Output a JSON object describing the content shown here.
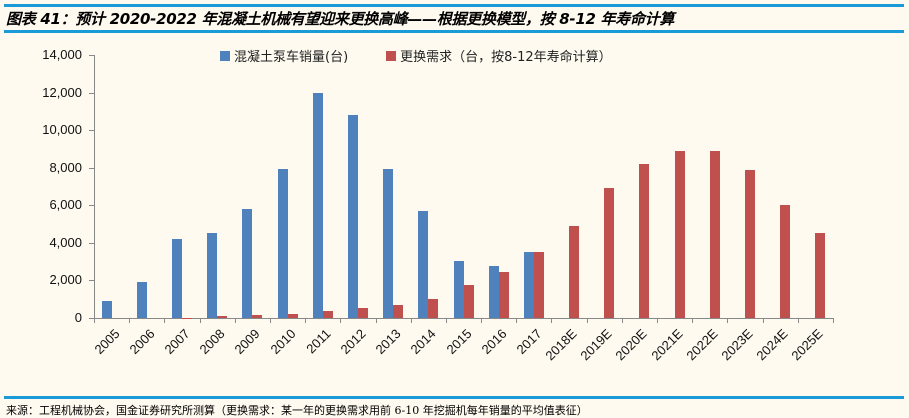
{
  "header": {
    "title": "图表 41：预计 2020-2022 年混凝土机械有望迎来更换高峰——根据更换模型，按 8-12 年寿命计算"
  },
  "footer": {
    "source": "来源：工程机械协会，国金证券研究所测算（更换需求：某一年的更换需求用前 6-10 年挖掘机每年销量的平均值表征）"
  },
  "legend": [
    {
      "label": "混凝土泵车销量(台)",
      "color": "#4f81bd"
    },
    {
      "label": "更换需求（台，按8-12年寿命计算）",
      "color": "#c0504d"
    }
  ],
  "chart_data": {
    "type": "bar",
    "title": "预计 2020-2022 年混凝土机械有望迎来更换高峰——根据更换模型，按 8-12 年寿命计算",
    "xlabel": "",
    "ylabel": "",
    "ylim": [
      0,
      14000
    ],
    "yticks": [
      "0",
      "2,000",
      "4,000",
      "6,000",
      "8,000",
      "10,000",
      "12,000",
      "14,000"
    ],
    "grid": false,
    "legend_position": "top",
    "categories": [
      "2005",
      "2006",
      "2007",
      "2008",
      "2009",
      "2010",
      "2011",
      "2012",
      "2013",
      "2014",
      "2015",
      "2016",
      "2017",
      "2018E",
      "2019E",
      "2020E",
      "2021E",
      "2022E",
      "2023E",
      "2024E",
      "2025E"
    ],
    "series": [
      {
        "name": "混凝土泵车销量(台)",
        "color": "#4f81bd",
        "values": [
          900,
          1900,
          4200,
          4500,
          5800,
          7950,
          12000,
          10800,
          7950,
          5700,
          3050,
          2750,
          3500,
          null,
          null,
          null,
          null,
          null,
          null,
          null,
          null
        ]
      },
      {
        "name": "更换需求（台，按8-12年寿命计算）",
        "color": "#c0504d",
        "values": [
          0,
          0,
          20,
          100,
          150,
          230,
          350,
          550,
          700,
          1000,
          1750,
          2450,
          3500,
          4900,
          6900,
          8200,
          8900,
          8900,
          7900,
          6000,
          4550
        ]
      }
    ]
  }
}
